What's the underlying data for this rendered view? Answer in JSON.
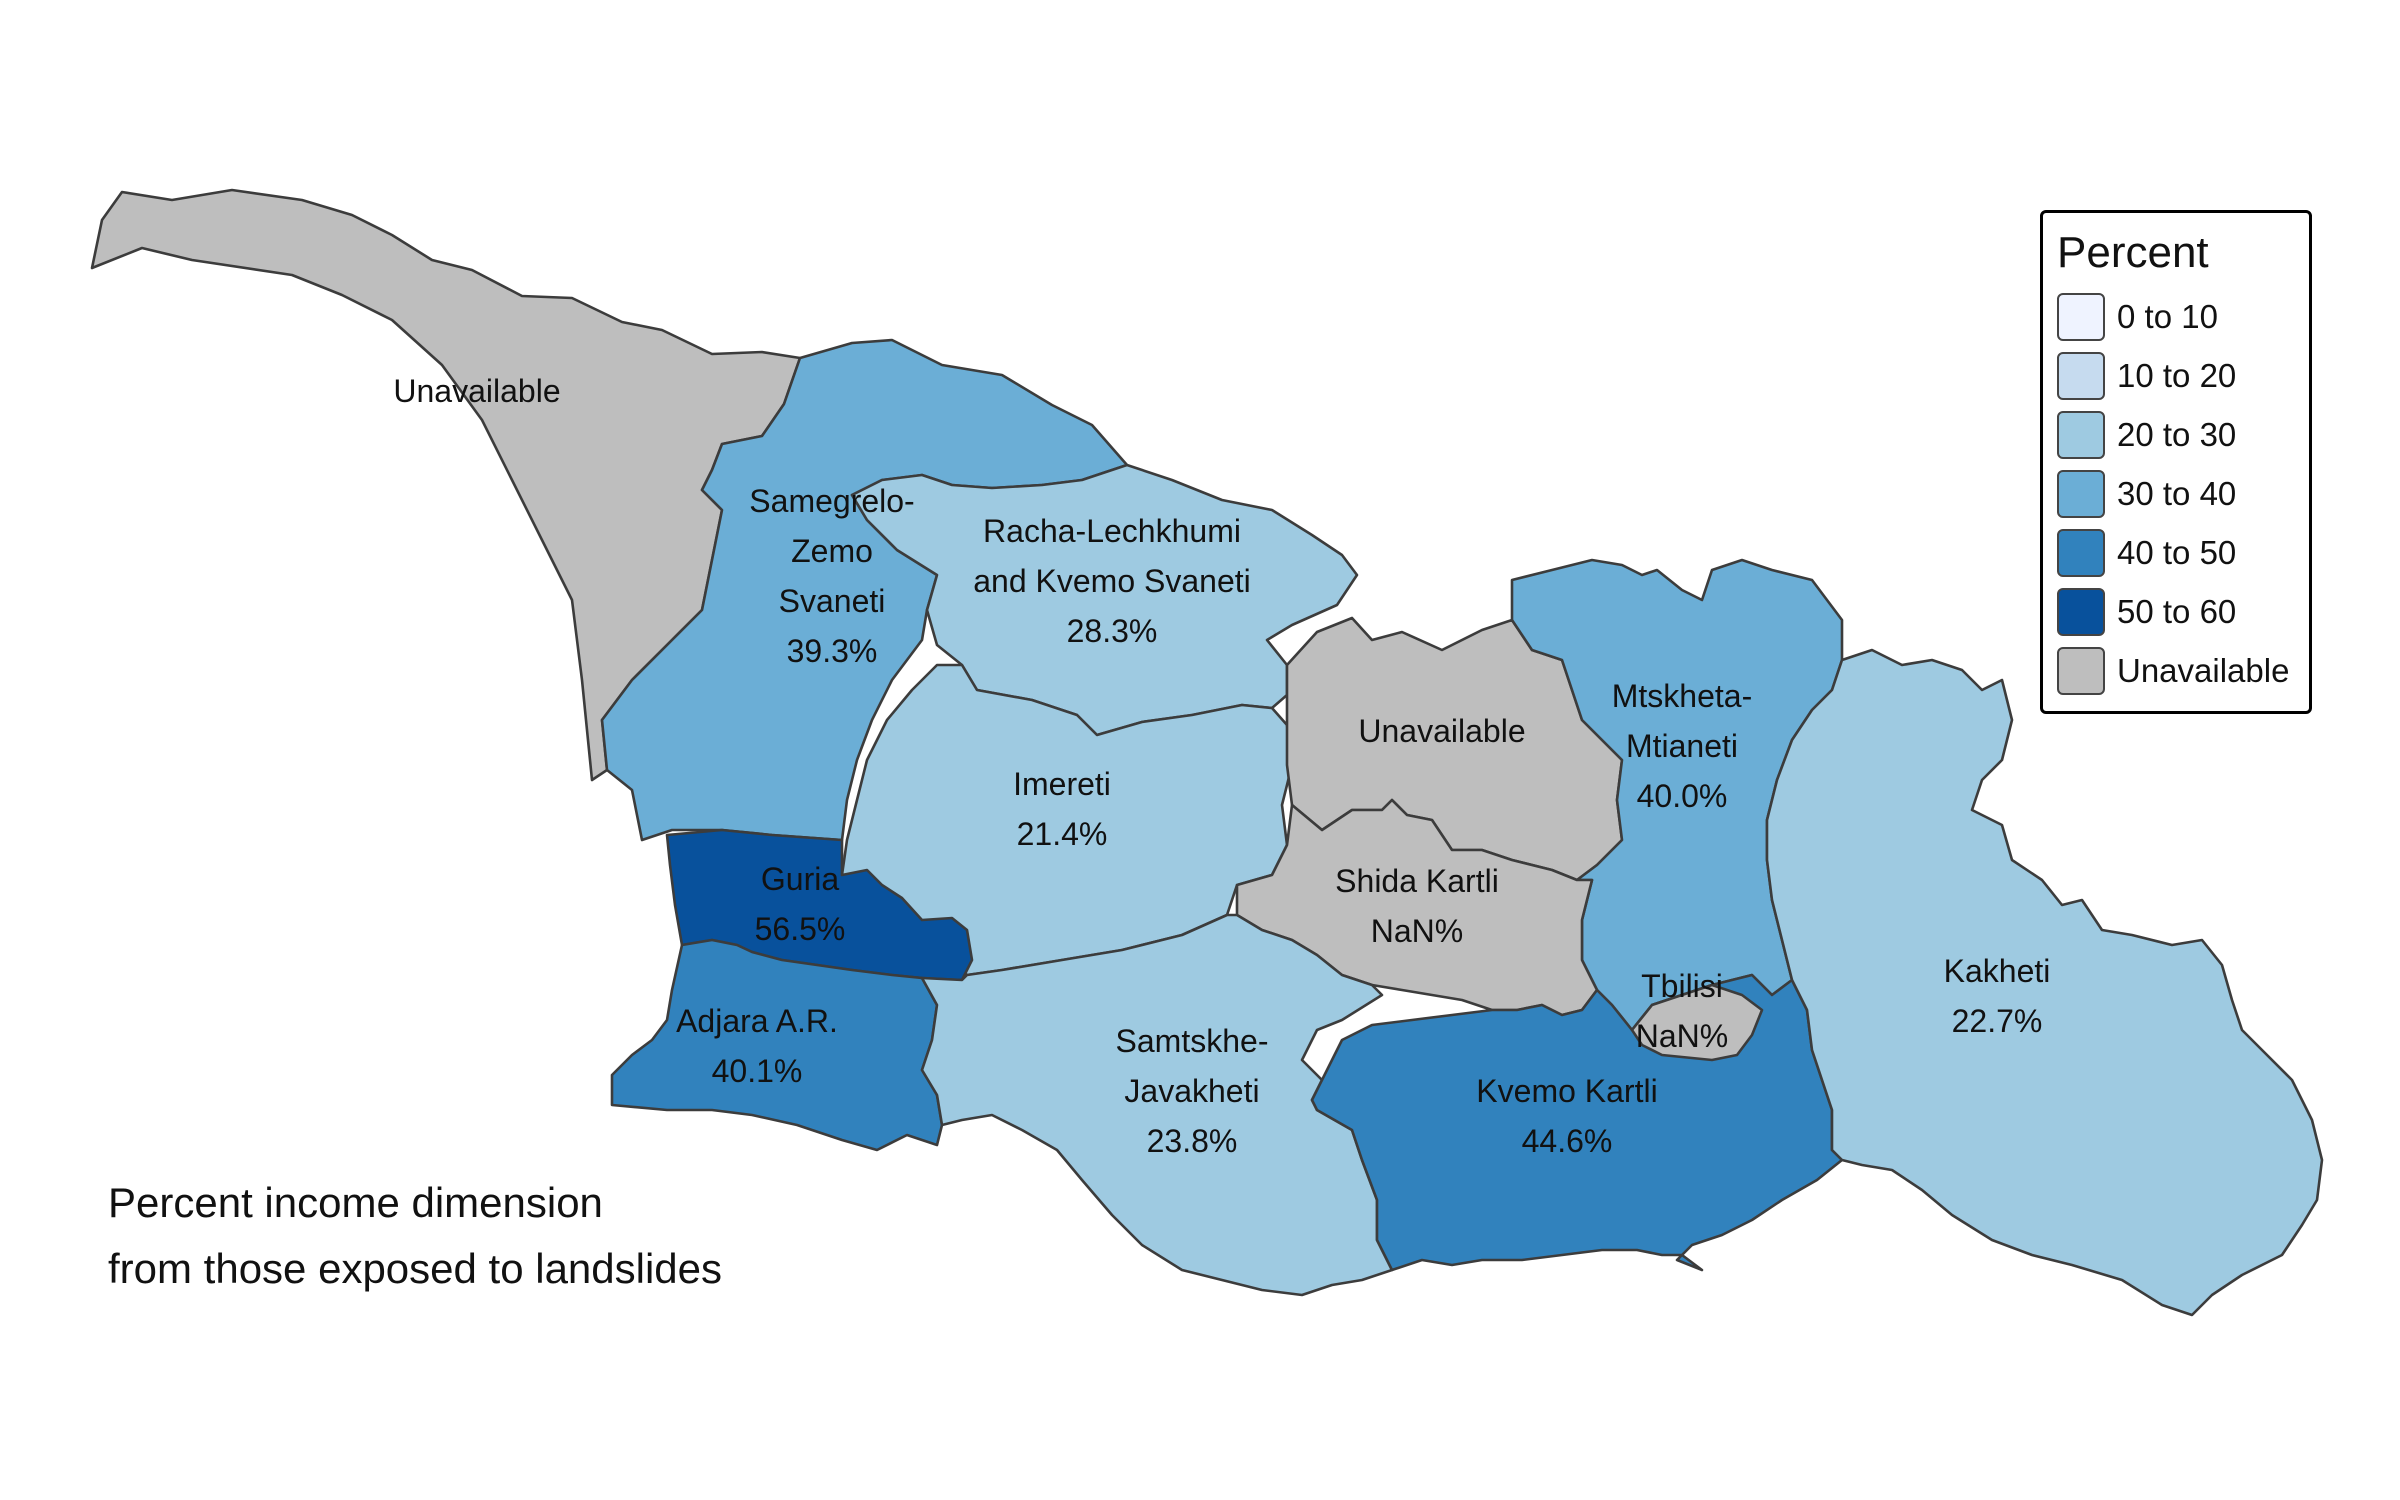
{
  "legend": {
    "title": "Percent",
    "items": [
      {
        "label": "0 to 10",
        "color": "#eff3ff"
      },
      {
        "label": "10 to 20",
        "color": "#c6dbef"
      },
      {
        "label": "20 to 30",
        "color": "#9ecae1"
      },
      {
        "label": "30 to 40",
        "color": "#6baed6"
      },
      {
        "label": "40 to 50",
        "color": "#3182bd"
      },
      {
        "label": "50 to 60",
        "color": "#08519c"
      },
      {
        "label": "Unavailable",
        "color": "#bebebe"
      }
    ]
  },
  "caption": {
    "line1": "Percent income dimension",
    "line2": "from those exposed to landslides"
  },
  "regions": {
    "abkhazia": {
      "name": "Unavailable",
      "value": "",
      "color": "#bebebe"
    },
    "samegrelo": {
      "name_lines": [
        "Samegrelo-",
        "Zemo",
        "Svaneti"
      ],
      "value": "39.3%",
      "color": "#6baed6"
    },
    "racha": {
      "name_lines": [
        "Racha-Lechkhumi",
        "and Kvemo Svaneti"
      ],
      "value": "28.3%",
      "color": "#9ecae1"
    },
    "imereti": {
      "name": "Imereti",
      "value": "21.4%",
      "color": "#9ecae1"
    },
    "south_ossetia": {
      "name": "Unavailable",
      "value": "",
      "color": "#bebebe"
    },
    "mtskheta": {
      "name_lines": [
        "Mtskheta-",
        "Mtianeti"
      ],
      "value": "40.0%",
      "color": "#6baed6"
    },
    "shida_kartli": {
      "name": "Shida Kartli",
      "value": "NaN%",
      "color": "#bebebe"
    },
    "guria": {
      "name": "Guria",
      "value": "56.5%",
      "color": "#08519c"
    },
    "adjara": {
      "name": "Adjara A.R.",
      "value": "40.1%",
      "color": "#3182bd"
    },
    "samtskhe": {
      "name_lines": [
        "Samtskhe-",
        "Javakheti"
      ],
      "value": "23.8%",
      "color": "#9ecae1"
    },
    "kvemo_kartli": {
      "name": "Kvemo Kartli",
      "value": "44.6%",
      "color": "#3182bd"
    },
    "tbilisi": {
      "name": "Tbilisi",
      "value": "NaN%",
      "color": "#bebebe"
    },
    "kakheti": {
      "name": "Kakheti",
      "value": "22.7%",
      "color": "#9ecae1"
    }
  }
}
